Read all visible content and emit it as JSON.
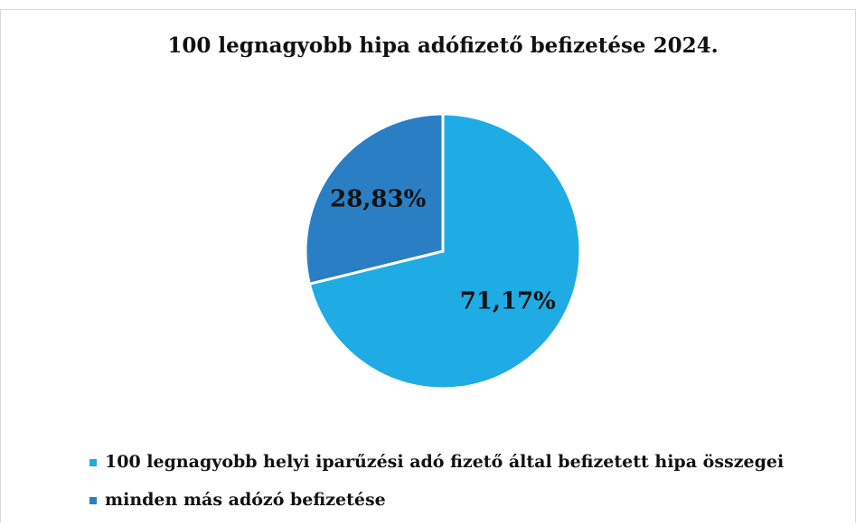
{
  "chart_data": {
    "type": "pie",
    "title": "100 legnagyobb hipa adófizető befizetése 2024.",
    "categories": [
      "100 legnagyobb helyi iparűzési adó fizető által befizetett hipa összegei",
      "minden más adózó befizetése"
    ],
    "values": [
      71.17,
      28.83
    ],
    "value_labels": [
      "71,17%",
      "28,83%"
    ],
    "colors": [
      "#1fabe4",
      "#2a7fc4"
    ],
    "legend": "bottom"
  }
}
